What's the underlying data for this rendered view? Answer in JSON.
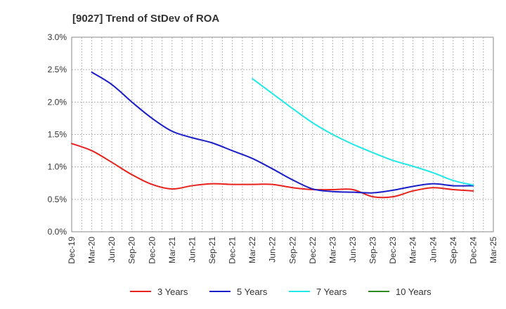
{
  "chart_data": {
    "type": "line",
    "title": "[9027]  Trend of StDev of ROA",
    "xlabel": "",
    "ylabel": "",
    "ylim": [
      0,
      3.0
    ],
    "y_ticks": [
      0.0,
      0.5,
      1.0,
      1.5,
      2.0,
      2.5,
      3.0
    ],
    "y_tick_labels": [
      "0.0%",
      "0.5%",
      "1.0%",
      "1.5%",
      "2.0%",
      "2.5%",
      "3.0%"
    ],
    "x_tick_labels": [
      "Dec-19",
      "Mar-20",
      "Jun-20",
      "Sep-20",
      "Dec-20",
      "Mar-21",
      "Jun-21",
      "Sep-21",
      "Dec-21",
      "Mar-22",
      "Jun-22",
      "Sep-22",
      "Dec-22",
      "Mar-23",
      "Jun-23",
      "Sep-23",
      "Dec-23",
      "Mar-24",
      "Jun-24",
      "Sep-24",
      "Dec-24",
      "Mar-25"
    ],
    "grid": true,
    "legend_position": "bottom",
    "series": [
      {
        "name": "3 Years",
        "color": "#e8221c",
        "values": [
          1.36,
          1.25,
          1.07,
          0.88,
          0.73,
          0.66,
          0.71,
          0.74,
          0.73,
          0.73,
          0.73,
          0.68,
          0.65,
          0.65,
          0.65,
          0.54,
          0.54,
          0.63,
          0.68,
          0.65,
          0.63,
          null
        ]
      },
      {
        "name": "5 Years",
        "color": "#1a1ec8",
        "values": [
          null,
          2.46,
          2.27,
          2.0,
          1.75,
          1.55,
          1.45,
          1.37,
          1.25,
          1.13,
          0.97,
          0.8,
          0.66,
          0.62,
          0.61,
          0.6,
          0.64,
          0.7,
          0.74,
          0.71,
          0.71,
          null
        ]
      },
      {
        "name": "7 Years",
        "color": "#22e8e8",
        "values": [
          null,
          null,
          null,
          null,
          null,
          null,
          null,
          null,
          null,
          2.36,
          2.13,
          1.9,
          1.68,
          1.5,
          1.35,
          1.22,
          1.1,
          1.01,
          0.91,
          0.79,
          0.72,
          null
        ]
      },
      {
        "name": "10 Years",
        "color": "#2e8b22",
        "values": [
          null,
          null,
          null,
          null,
          null,
          null,
          null,
          null,
          null,
          null,
          null,
          null,
          null,
          null,
          null,
          null,
          null,
          null,
          null,
          null,
          null,
          null
        ]
      }
    ]
  }
}
